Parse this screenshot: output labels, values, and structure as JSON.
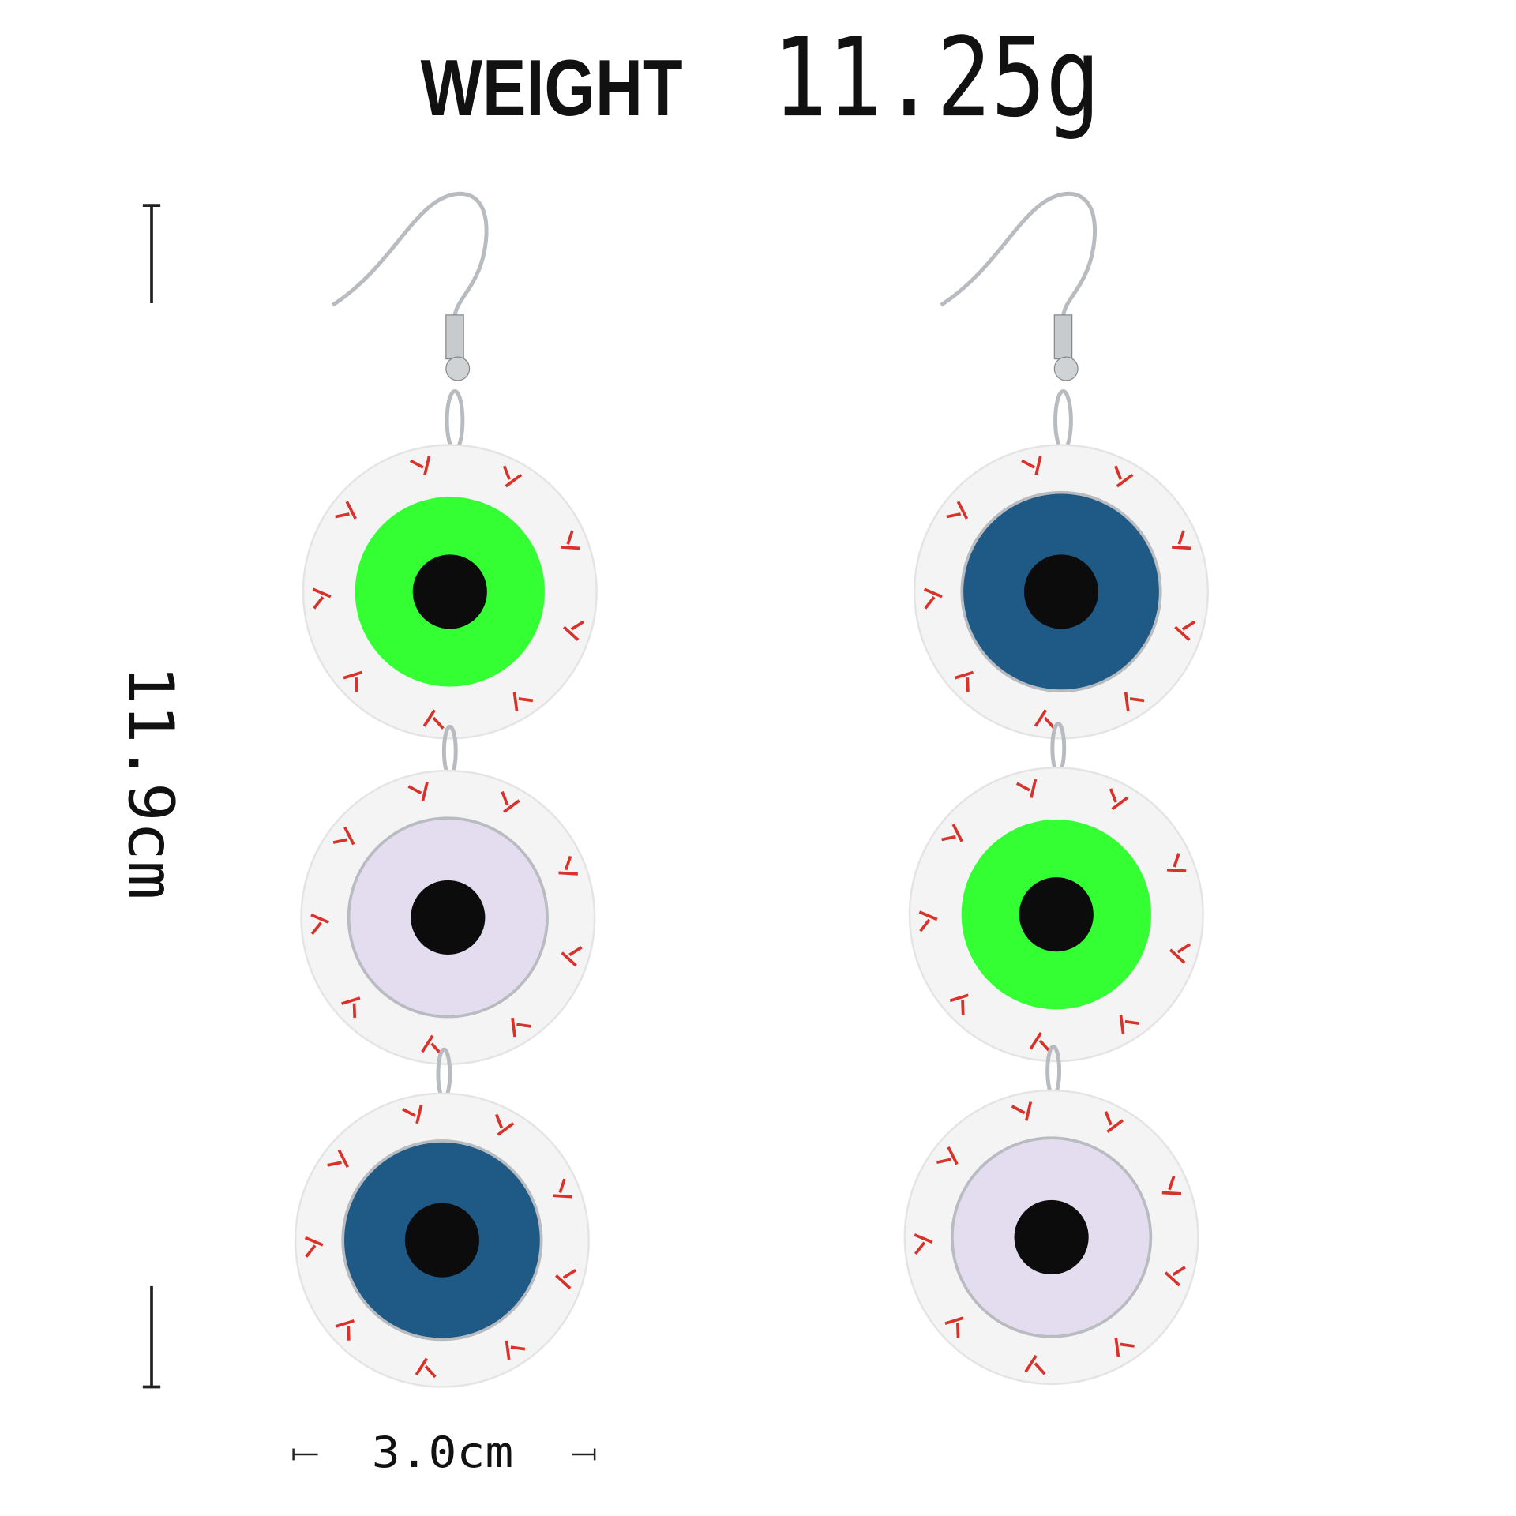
{
  "header": {
    "weight_label": "WEIGHT",
    "weight_value": "11.25g"
  },
  "dimensions": {
    "height": "11.9cm",
    "width": "3.0cm"
  },
  "colors": {
    "sclera": "#f4f4f4",
    "veins": "#d9322a",
    "pupil": "#0c0c0c",
    "silver": "#b8bcc0",
    "green": "#33ff33",
    "lavender": "#e4ddf0",
    "blue": "#1f5a87"
  },
  "earrings": [
    {
      "name": "left",
      "eyes": [
        "green",
        "lavender",
        "blue"
      ]
    },
    {
      "name": "right",
      "eyes": [
        "blue",
        "green",
        "lavender"
      ]
    }
  ]
}
